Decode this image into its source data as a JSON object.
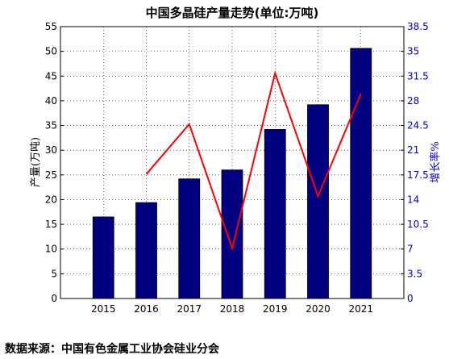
{
  "chart_data": {
    "type": "bar",
    "title": "中国多晶硅产量走势(单位:万吨)",
    "categories": [
      "2015",
      "2016",
      "2017",
      "2018",
      "2019",
      "2020",
      "2021"
    ],
    "series": [
      {
        "type": "bar",
        "axis": "left",
        "values": [
          16.5,
          19.4,
          24.2,
          26.0,
          34.2,
          39.2,
          50.6
        ],
        "color": "#000080"
      },
      {
        "type": "line",
        "axis": "right",
        "values": [
          null,
          17.6,
          24.7,
          7.1,
          31.9,
          14.5,
          29.0
        ],
        "color": "#ff0000"
      }
    ],
    "ylabel_left": "产量(万吨)",
    "ylabel_right": "增长率%",
    "ylim_left": [
      0,
      55
    ],
    "ylim_right": [
      0,
      38.5
    ],
    "yticks_left": [
      "0",
      "5",
      "10",
      "15",
      "20",
      "25",
      "30",
      "35",
      "40",
      "45",
      "50",
      "55"
    ],
    "yticks_right": [
      "0",
      "3.5",
      "7",
      "10.5",
      "14",
      "17.5",
      "21",
      "24.5",
      "28",
      "31.5",
      "35",
      "38.5"
    ],
    "grid": true,
    "legend": "none"
  },
  "source_note": "数据来源：中国有色金属工业协会硅业分会"
}
